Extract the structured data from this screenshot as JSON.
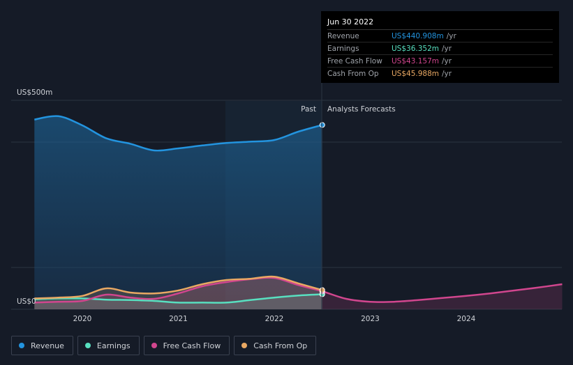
{
  "chart_data": {
    "type": "line",
    "y_unit_label_top": "US$500m",
    "y_unit_label_bottom": "US$0",
    "ylim": [
      0,
      500
    ],
    "x_ticks": [
      "2020",
      "2021",
      "2022",
      "2023",
      "2024"
    ],
    "past_label": "Past",
    "forecast_label": "Analysts Forecasts",
    "series": [
      {
        "name": "Revenue",
        "color": "#2394df",
        "x": [
          2019.5,
          2019.75,
          2020.0,
          2020.25,
          2020.5,
          2020.75,
          2021.0,
          2021.25,
          2021.5,
          2021.75,
          2022.0,
          2022.25,
          2022.5
        ],
        "values": [
          454,
          462,
          440,
          409,
          396,
          380,
          385,
          392,
          398,
          401,
          405,
          425,
          441
        ]
      },
      {
        "name": "Earnings",
        "color": "#58e0c0",
        "x": [
          2019.5,
          2019.75,
          2020.0,
          2020.25,
          2020.5,
          2020.75,
          2021.0,
          2021.25,
          2021.5,
          2021.75,
          2022.0,
          2022.25,
          2022.5
        ],
        "values": [
          24,
          26,
          26,
          23,
          22,
          20,
          16,
          16,
          16,
          22,
          28,
          33,
          36
        ]
      },
      {
        "name": "Free Cash Flow",
        "color": "#d1468e",
        "x": [
          2019.5,
          2019.75,
          2020.0,
          2020.25,
          2020.5,
          2020.75,
          2021.0,
          2021.25,
          2021.5,
          2021.75,
          2022.0,
          2022.25,
          2022.5,
          2022.75,
          2023.0,
          2023.25,
          2023.5,
          2023.75,
          2024.0,
          2024.25,
          2024.5,
          2024.75,
          2025.0
        ],
        "values": [
          16,
          18,
          20,
          35,
          28,
          25,
          38,
          55,
          65,
          72,
          75,
          58,
          43,
          25,
          18,
          18,
          22,
          27,
          32,
          38,
          45,
          52,
          60
        ]
      },
      {
        "name": "Cash From Op",
        "color": "#e9a863",
        "x": [
          2019.5,
          2019.75,
          2020.0,
          2020.25,
          2020.5,
          2020.75,
          2021.0,
          2021.25,
          2021.5,
          2021.75,
          2022.0,
          2022.25,
          2022.5
        ],
        "values": [
          26,
          28,
          32,
          50,
          40,
          38,
          45,
          60,
          70,
          73,
          78,
          62,
          46
        ]
      }
    ],
    "tooltip": {
      "date": "Jun 30 2022",
      "rows": [
        {
          "label": "Revenue",
          "value": "US$440.908m",
          "unit": "/yr",
          "color": "#2394df"
        },
        {
          "label": "Earnings",
          "value": "US$36.352m",
          "unit": "/yr",
          "color": "#58e0c0"
        },
        {
          "label": "Free Cash Flow",
          "value": "US$43.157m",
          "unit": "/yr",
          "color": "#d1468e"
        },
        {
          "label": "Cash From Op",
          "value": "US$45.988m",
          "unit": "/yr",
          "color": "#e9a863"
        }
      ]
    }
  },
  "legend": [
    {
      "label": "Revenue",
      "color": "#2394df"
    },
    {
      "label": "Earnings",
      "color": "#58e0c0"
    },
    {
      "label": "Free Cash Flow",
      "color": "#d1468e"
    },
    {
      "label": "Cash From Op",
      "color": "#e9a863"
    }
  ]
}
